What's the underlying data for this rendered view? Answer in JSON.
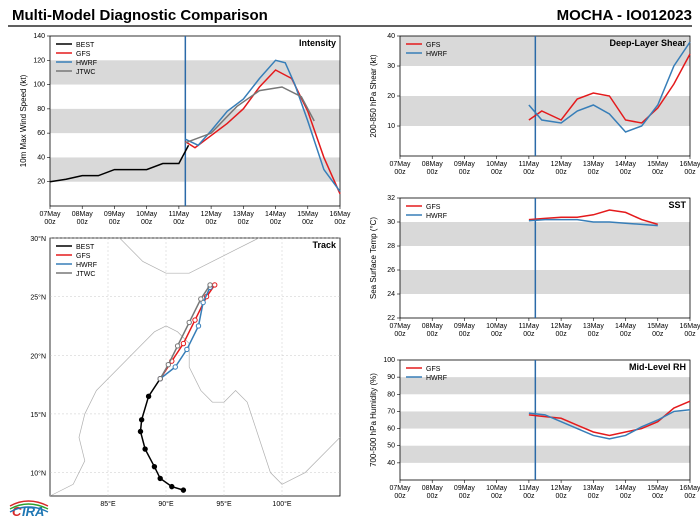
{
  "header": {
    "title_left": "Multi-Model Diagnostic Comparison",
    "title_right": "MOCHA - IO012023"
  },
  "logo": {
    "text_c": "C",
    "text_ira": "IRA"
  },
  "colors": {
    "best": "#000000",
    "gfs": "#e41a1c",
    "hwrf": "#377eb8",
    "jtwc": "#777777",
    "band": "#d9d9d9",
    "grid": "#bbbbbb",
    "coast": "#b0b0b0",
    "vline": "#2b6aa8"
  },
  "x_labels": [
    "07May 00z",
    "08May 00z",
    "09May 00z",
    "10May 00z",
    "11May 00z",
    "12May 00z",
    "13May 00z",
    "14May 00z",
    "15May 00z",
    "16May 00z"
  ],
  "intensity": {
    "title": "Intensity",
    "ylabel": "10m Max Wind Speed (kt)",
    "ylim": [
      0,
      140
    ],
    "ytick": [
      20,
      40,
      60,
      80,
      100,
      120,
      140
    ],
    "bands": [
      [
        20,
        40
      ],
      [
        60,
        80
      ],
      [
        100,
        120
      ]
    ],
    "vline_x": 4.2,
    "legend": [
      "BEST",
      "GFS",
      "HWRF",
      "JTWC"
    ],
    "series": {
      "best": [
        [
          0,
          20
        ],
        [
          0.5,
          22
        ],
        [
          1,
          25
        ],
        [
          1.5,
          25
        ],
        [
          2,
          30
        ],
        [
          2.5,
          30
        ],
        [
          3,
          30
        ],
        [
          3.5,
          35
        ],
        [
          4,
          35
        ],
        [
          4.3,
          50
        ]
      ],
      "gfs": [
        [
          4.2,
          53
        ],
        [
          4.5,
          48
        ],
        [
          5,
          58
        ],
        [
          5.5,
          68
        ],
        [
          6,
          80
        ],
        [
          6.5,
          98
        ],
        [
          7,
          112
        ],
        [
          7.5,
          105
        ],
        [
          8,
          78
        ],
        [
          8.5,
          40
        ],
        [
          9,
          10
        ]
      ],
      "hwrf": [
        [
          4.2,
          55
        ],
        [
          4.6,
          50
        ],
        [
          5,
          62
        ],
        [
          5.5,
          78
        ],
        [
          6,
          88
        ],
        [
          6.5,
          105
        ],
        [
          7,
          120
        ],
        [
          7.3,
          118
        ],
        [
          7.6,
          100
        ],
        [
          8,
          70
        ],
        [
          8.5,
          30
        ],
        [
          9,
          12
        ]
      ],
      "jtwc": [
        [
          4.2,
          52
        ],
        [
          5,
          60
        ],
        [
          5.8,
          82
        ],
        [
          6.5,
          95
        ],
        [
          7.2,
          98
        ],
        [
          7.8,
          90
        ],
        [
          8.2,
          70
        ]
      ]
    }
  },
  "shear": {
    "title": "Deep-Layer Shear",
    "ylabel": "200-850 hPa Shear (kt)",
    "ylim": [
      0,
      40
    ],
    "ytick": [
      10,
      20,
      30,
      40
    ],
    "bands": [
      [
        10,
        20
      ],
      [
        30,
        40
      ]
    ],
    "vline_x": 4.2,
    "legend": [
      "GFS",
      "HWRF"
    ],
    "series": {
      "gfs": [
        [
          4,
          12
        ],
        [
          4.4,
          15
        ],
        [
          5,
          12
        ],
        [
          5.5,
          19
        ],
        [
          6,
          21
        ],
        [
          6.5,
          20
        ],
        [
          7,
          12
        ],
        [
          7.5,
          11
        ],
        [
          8,
          16
        ],
        [
          8.5,
          24
        ],
        [
          9,
          34
        ]
      ],
      "hwrf": [
        [
          4,
          17
        ],
        [
          4.4,
          12
        ],
        [
          5,
          11
        ],
        [
          5.5,
          15
        ],
        [
          6,
          17
        ],
        [
          6.5,
          14
        ],
        [
          7,
          8
        ],
        [
          7.5,
          10
        ],
        [
          8,
          17
        ],
        [
          8.5,
          30
        ],
        [
          9,
          38
        ]
      ]
    }
  },
  "sst": {
    "title": "SST",
    "ylabel": "Sea Surface Temp (°C)",
    "ylim": [
      22,
      32
    ],
    "ytick": [
      22,
      24,
      26,
      28,
      30,
      32
    ],
    "bands": [
      [
        24,
        26
      ],
      [
        28,
        30
      ]
    ],
    "vline_x": 4.2,
    "legend": [
      "GFS",
      "HWRF"
    ],
    "series": {
      "gfs": [
        [
          4,
          30.2
        ],
        [
          4.5,
          30.3
        ],
        [
          5,
          30.4
        ],
        [
          5.5,
          30.4
        ],
        [
          6,
          30.6
        ],
        [
          6.5,
          31.0
        ],
        [
          7,
          30.8
        ],
        [
          7.5,
          30.2
        ],
        [
          8,
          29.8
        ]
      ],
      "hwrf": [
        [
          4,
          30.1
        ],
        [
          4.5,
          30.2
        ],
        [
          5,
          30.2
        ],
        [
          5.5,
          30.2
        ],
        [
          6,
          30.0
        ],
        [
          6.5,
          30.0
        ],
        [
          7,
          29.9
        ],
        [
          7.5,
          29.8
        ],
        [
          8,
          29.7
        ]
      ]
    }
  },
  "rh": {
    "title": "Mid-Level RH",
    "ylabel": "700-500 hPa Humidity (%)",
    "ylim": [
      30,
      100
    ],
    "ytick": [
      40,
      50,
      60,
      70,
      80,
      90,
      100
    ],
    "bands": [
      [
        40,
        50
      ],
      [
        60,
        70
      ],
      [
        80,
        90
      ]
    ],
    "vline_x": 4.2,
    "legend": [
      "GFS",
      "HWRF"
    ],
    "series": {
      "gfs": [
        [
          4,
          68
        ],
        [
          4.5,
          67
        ],
        [
          5,
          66
        ],
        [
          5.5,
          62
        ],
        [
          6,
          58
        ],
        [
          6.5,
          56
        ],
        [
          7,
          58
        ],
        [
          7.5,
          60
        ],
        [
          8,
          64
        ],
        [
          8.5,
          72
        ],
        [
          9,
          76
        ]
      ],
      "hwrf": [
        [
          4,
          69
        ],
        [
          4.5,
          68
        ],
        [
          5,
          64
        ],
        [
          5.5,
          60
        ],
        [
          6,
          56
        ],
        [
          6.5,
          54
        ],
        [
          7,
          56
        ],
        [
          7.5,
          61
        ],
        [
          8,
          65
        ],
        [
          8.5,
          70
        ],
        [
          9,
          71
        ]
      ]
    }
  },
  "track": {
    "title": "Track",
    "xlabel": "",
    "ylabel": "",
    "lon_range": [
      80,
      105
    ],
    "lat_range": [
      8,
      30
    ],
    "xticks": [
      85,
      90,
      95,
      100
    ],
    "yticks": [
      10,
      15,
      20,
      25,
      30
    ],
    "legend": [
      "BEST",
      "GFS",
      "HWRF",
      "JTWC"
    ],
    "series": {
      "best": [
        [
          91.5,
          8.5
        ],
        [
          90.5,
          8.8
        ],
        [
          89.5,
          9.5
        ],
        [
          89.0,
          10.5
        ],
        [
          88.2,
          12.0
        ],
        [
          87.8,
          13.5
        ],
        [
          87.9,
          14.5
        ],
        [
          88.5,
          16.5
        ],
        [
          89.5,
          18.0
        ]
      ],
      "gfs": [
        [
          89.5,
          18.0
        ],
        [
          90.5,
          19.5
        ],
        [
          91.5,
          21.0
        ],
        [
          92.5,
          23.0
        ],
        [
          93.5,
          25.0
        ],
        [
          94.2,
          26.0
        ]
      ],
      "hwrf": [
        [
          89.5,
          18.0
        ],
        [
          90.8,
          19.0
        ],
        [
          91.8,
          20.5
        ],
        [
          92.8,
          22.5
        ],
        [
          93.2,
          24.5
        ],
        [
          93.8,
          25.8
        ]
      ],
      "jtwc": [
        [
          89.5,
          18.0
        ],
        [
          90.2,
          19.2
        ],
        [
          91.0,
          20.8
        ],
        [
          92.0,
          22.8
        ],
        [
          93.0,
          24.8
        ],
        [
          93.8,
          26.0
        ]
      ]
    },
    "coast": [
      [
        [
          80,
          8
        ],
        [
          82,
          9
        ],
        [
          83,
          11
        ],
        [
          82.5,
          13
        ],
        [
          83,
          15
        ],
        [
          84,
          17
        ],
        [
          86,
          19
        ],
        [
          88,
          21
        ],
        [
          89,
          22
        ],
        [
          90,
          22.5
        ],
        [
          91,
          22
        ],
        [
          92,
          21
        ],
        [
          92,
          19
        ],
        [
          93,
          17
        ],
        [
          94,
          16
        ],
        [
          95,
          16
        ],
        [
          96,
          17
        ],
        [
          97,
          16
        ],
        [
          98,
          13
        ],
        [
          99,
          10
        ],
        [
          100,
          9
        ],
        [
          102,
          10
        ],
        [
          104,
          12
        ],
        [
          105,
          13
        ]
      ],
      [
        [
          86,
          30
        ],
        [
          88,
          28
        ],
        [
          90,
          27
        ],
        [
          92,
          27
        ],
        [
          94,
          28
        ],
        [
          96,
          29
        ],
        [
          98,
          30
        ]
      ]
    ]
  }
}
